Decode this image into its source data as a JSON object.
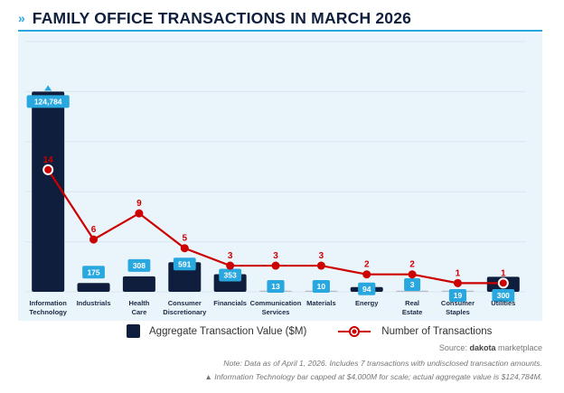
{
  "header": {
    "bullet": "»",
    "title": "FAMILY OFFICE TRANSACTIONS IN MARCH 2026"
  },
  "colors": {
    "bar": "#0f1e3c",
    "label_bg": "#29a8e0",
    "line": "#cc0000",
    "accent": "#29a8e0",
    "panel_bg": "#eaf4fb",
    "grid": "#d9e6f0"
  },
  "chart_data": {
    "type": "bar",
    "title": "FAMILY OFFICE TRANSACTIONS IN MARCH 2026",
    "xlabel": "",
    "ylabel": "",
    "categories": [
      [
        "Information",
        "Technology"
      ],
      [
        "Industrials"
      ],
      [
        "Health",
        "Care"
      ],
      [
        "Consumer",
        "Discretionary"
      ],
      [
        "Financials"
      ],
      [
        "Communication",
        "Services"
      ],
      [
        "Materials"
      ],
      [
        "Energy"
      ],
      [
        "Real",
        "Estate"
      ],
      [
        "Consumer",
        "Staples"
      ],
      [
        "Utilities"
      ]
    ],
    "series": [
      {
        "name": "Aggregate Transaction Value ($M)",
        "type": "bar",
        "values": [
          124784,
          175,
          308,
          591,
          353,
          13,
          10,
          94,
          3,
          19,
          300
        ],
        "value_labels": [
          "124,784",
          "175",
          "308",
          "591",
          "353",
          "13",
          "10",
          "94",
          "3",
          "19",
          "300"
        ],
        "display_cap": 4000,
        "capped_indices": [
          0
        ],
        "axis": "left",
        "ylim": [
          0,
          5000
        ]
      },
      {
        "name": "Number of Transactions",
        "type": "line",
        "values": [
          14,
          6,
          9,
          5,
          3,
          3,
          3,
          2,
          2,
          1,
          1
        ],
        "highlighted_indices": [
          0,
          10
        ],
        "axis": "right",
        "ylim": [
          0,
          28.7
        ]
      }
    ],
    "grid": true,
    "gridlines": 5,
    "legend_position": "bottom-center"
  },
  "legend": {
    "bar_label": "Aggregate Transaction Value ($M)",
    "line_label": "Number of Transactions"
  },
  "footer": {
    "source_prefix": "Source: ",
    "source_brand": "dakota",
    "source_suffix": " marketplace",
    "note": "Note: Data as of April 1, 2026. Includes 7 transactions with undisclosed transaction amounts.",
    "cap_note_icon": "▲",
    "cap_note": " Information Technology bar capped at $4,000M for scale; actual aggregate value is $124,784M."
  }
}
